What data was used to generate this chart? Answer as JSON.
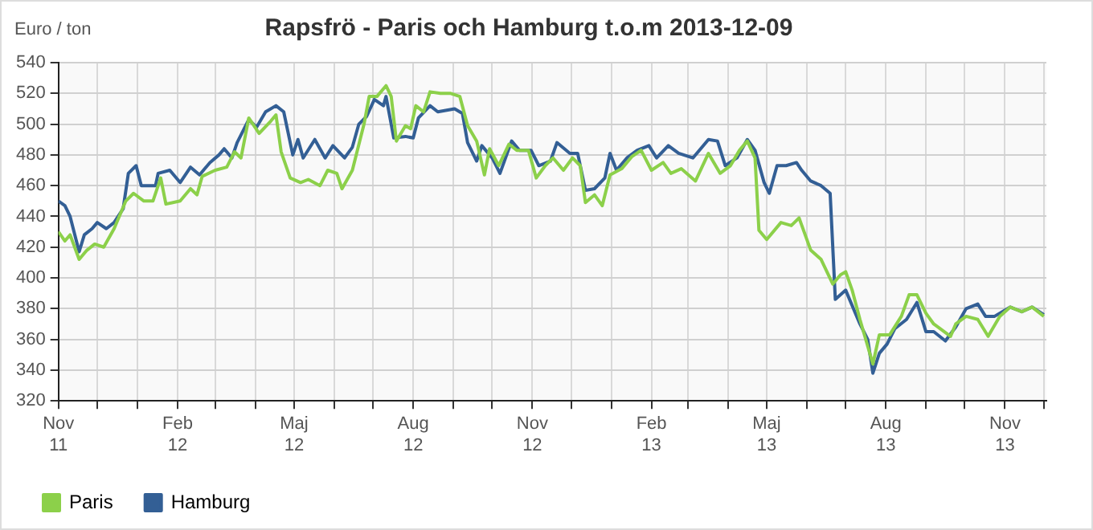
{
  "chart_data": {
    "type": "line",
    "title": "Rapsfrö - Paris och Hamburg t.o.m 2013-12-09",
    "ylabel": "Euro / ton",
    "xlim": [
      "2011-11-01",
      "2013-12-03"
    ],
    "ylim": [
      320,
      540
    ],
    "yticks": [
      320,
      340,
      360,
      380,
      400,
      420,
      440,
      460,
      480,
      500,
      520,
      540
    ],
    "xticks": [
      {
        "value": "2011-11-01",
        "label": "Nov\n11"
      },
      {
        "value": "2011-12-01",
        "label": null
      },
      {
        "value": "2012-01-01",
        "label": null
      },
      {
        "value": "2012-02-01",
        "label": "Feb\n12"
      },
      {
        "value": "2012-03-01",
        "label": null
      },
      {
        "value": "2012-04-01",
        "label": null
      },
      {
        "value": "2012-05-01",
        "label": "Maj\n12"
      },
      {
        "value": "2012-06-01",
        "label": null
      },
      {
        "value": "2012-07-01",
        "label": null
      },
      {
        "value": "2012-08-01",
        "label": "Aug\n12"
      },
      {
        "value": "2012-09-01",
        "label": null
      },
      {
        "value": "2012-10-01",
        "label": null
      },
      {
        "value": "2012-11-01",
        "label": "Nov\n12"
      },
      {
        "value": "2012-12-01",
        "label": null
      },
      {
        "value": "2013-01-01",
        "label": null
      },
      {
        "value": "2013-02-01",
        "label": "Feb\n13"
      },
      {
        "value": "2013-03-01",
        "label": null
      },
      {
        "value": "2013-04-01",
        "label": null
      },
      {
        "value": "2013-05-01",
        "label": "Maj\n13"
      },
      {
        "value": "2013-06-01",
        "label": null
      },
      {
        "value": "2013-07-01",
        "label": null
      },
      {
        "value": "2013-08-01",
        "label": "Aug\n13"
      },
      {
        "value": "2013-09-01",
        "label": null
      },
      {
        "value": "2013-10-01",
        "label": null
      },
      {
        "value": "2013-11-01",
        "label": "Nov\n13"
      },
      {
        "value": "2013-12-01",
        "label": null
      }
    ],
    "grid": true,
    "legend": "bottom left",
    "series": [
      {
        "name": "Paris",
        "color": "#8cd04a",
        "x": [
          "2011-11-01",
          "2011-11-06",
          "2011-11-10",
          "2011-11-17",
          "2011-11-23",
          "2011-11-29",
          "2011-12-06",
          "2011-12-14",
          "2011-12-23",
          "2011-12-29",
          "2012-01-06",
          "2012-01-13",
          "2012-01-19",
          "2012-01-23",
          "2012-02-03",
          "2012-02-11",
          "2012-02-16",
          "2012-02-20",
          "2012-03-01",
          "2012-03-10",
          "2012-03-16",
          "2012-03-21",
          "2012-03-27",
          "2012-04-04",
          "2012-04-13",
          "2012-04-17",
          "2012-04-21",
          "2012-04-28",
          "2012-05-06",
          "2012-05-12",
          "2012-05-21",
          "2012-05-27",
          "2012-06-03",
          "2012-06-07",
          "2012-06-15",
          "2012-06-24",
          "2012-06-28",
          "2012-07-04",
          "2012-07-11",
          "2012-07-15",
          "2012-07-19",
          "2012-07-26",
          "2012-07-30",
          "2012-08-03",
          "2012-08-09",
          "2012-08-14",
          "2012-08-22",
          "2012-08-30",
          "2012-09-06",
          "2012-09-12",
          "2012-09-19",
          "2012-09-25",
          "2012-09-29",
          "2012-10-06",
          "2012-10-14",
          "2012-10-20",
          "2012-10-29",
          "2012-11-04",
          "2012-11-11",
          "2012-11-17",
          "2012-11-25",
          "2012-12-02",
          "2012-12-08",
          "2012-12-12",
          "2012-12-19",
          "2012-12-25",
          "2012-12-31",
          "2013-01-09",
          "2013-01-17",
          "2013-01-24",
          "2013-02-01",
          "2013-02-10",
          "2013-02-16",
          "2013-02-24",
          "2013-03-07",
          "2013-03-17",
          "2013-03-26",
          "2013-04-03",
          "2013-04-10",
          "2013-04-16",
          "2013-04-22",
          "2013-04-25",
          "2013-05-01",
          "2013-05-12",
          "2013-05-20",
          "2013-05-26",
          "2013-06-04",
          "2013-06-12",
          "2013-06-21",
          "2013-06-27",
          "2013-07-01",
          "2013-07-06",
          "2013-07-12",
          "2013-07-22",
          "2013-07-27",
          "2013-08-04",
          "2013-08-13",
          "2013-08-19",
          "2013-08-25",
          "2013-09-01",
          "2013-09-07",
          "2013-09-20",
          "2013-09-24",
          "2013-10-02",
          "2013-10-11",
          "2013-10-19",
          "2013-10-28",
          "2013-11-05",
          "2013-11-14",
          "2013-11-22",
          "2013-12-01"
        ],
        "values": [
          430,
          424,
          428,
          412,
          418,
          422,
          420,
          432,
          450,
          455,
          450,
          450,
          465,
          448,
          450,
          458,
          454,
          466,
          470,
          472,
          482,
          478,
          504,
          494,
          502,
          506,
          482,
          465,
          462,
          464,
          460,
          470,
          468,
          458,
          470,
          500,
          518,
          518,
          525,
          518,
          489,
          499,
          497,
          512,
          508,
          521,
          520,
          520,
          518,
          499,
          489,
          467,
          484,
          473,
          487,
          483,
          483,
          465,
          473,
          478,
          470,
          478,
          473,
          449,
          454,
          447,
          467,
          471,
          479,
          483,
          470,
          475,
          468,
          471,
          463,
          481,
          468,
          473,
          483,
          489,
          478,
          431,
          425,
          436,
          434,
          439,
          418,
          412,
          396,
          402,
          404,
          392,
          373,
          344,
          363,
          363,
          375,
          389,
          389,
          377,
          370,
          362,
          370,
          375,
          373,
          362,
          375,
          381,
          378,
          381,
          375
        ]
      },
      {
        "name": "Hamburg",
        "color": "#335f95",
        "x": [
          "2011-11-01",
          "2011-11-06",
          "2011-11-10",
          "2011-11-17",
          "2011-11-21",
          "2011-11-27",
          "2011-12-01",
          "2011-12-08",
          "2011-12-14",
          "2011-12-21",
          "2011-12-25",
          "2011-12-31",
          "2012-01-04",
          "2012-01-15",
          "2012-01-17",
          "2012-01-26",
          "2012-02-03",
          "2012-02-11",
          "2012-02-18",
          "2012-02-26",
          "2012-03-04",
          "2012-03-08",
          "2012-03-14",
          "2012-03-18",
          "2012-03-27",
          "2012-04-02",
          "2012-04-09",
          "2012-04-17",
          "2012-04-23",
          "2012-04-30",
          "2012-05-04",
          "2012-05-08",
          "2012-05-17",
          "2012-05-25",
          "2012-05-31",
          "2012-06-09",
          "2012-06-15",
          "2012-06-20",
          "2012-06-26",
          "2012-07-02",
          "2012-07-09",
          "2012-07-11",
          "2012-07-17",
          "2012-07-26",
          "2012-08-01",
          "2012-08-05",
          "2012-08-14",
          "2012-08-20",
          "2012-09-02",
          "2012-09-08",
          "2012-09-12",
          "2012-09-19",
          "2012-09-23",
          "2012-10-01",
          "2012-10-07",
          "2012-10-16",
          "2012-10-22",
          "2012-10-31",
          "2012-11-06",
          "2012-11-15",
          "2012-11-20",
          "2012-11-30",
          "2012-12-06",
          "2012-12-12",
          "2012-12-19",
          "2012-12-27",
          "2012-12-31",
          "2013-01-05",
          "2013-01-13",
          "2013-01-21",
          "2013-01-30",
          "2013-02-05",
          "2013-02-14",
          "2013-02-22",
          "2013-03-05",
          "2013-03-17",
          "2013-03-24",
          "2013-03-30",
          "2013-04-08",
          "2013-04-16",
          "2013-04-22",
          "2013-04-29",
          "2013-05-03",
          "2013-05-09",
          "2013-05-16",
          "2013-05-24",
          "2013-05-28",
          "2013-06-04",
          "2013-06-12",
          "2013-06-19",
          "2013-06-23",
          "2013-07-01",
          "2013-07-12",
          "2013-07-18",
          "2013-07-22",
          "2013-07-27",
          "2013-08-02",
          "2013-08-08",
          "2013-08-17",
          "2013-08-25",
          "2013-09-01",
          "2013-09-07",
          "2013-09-16",
          "2013-09-24",
          "2013-10-02",
          "2013-10-11",
          "2013-10-17",
          "2013-10-24",
          "2013-11-05",
          "2013-11-14",
          "2013-11-22",
          "2013-12-01"
        ],
        "values": [
          450,
          447,
          440,
          417,
          428,
          432,
          436,
          432,
          436,
          445,
          468,
          473,
          460,
          460,
          468,
          470,
          462,
          472,
          467,
          475,
          480,
          484,
          478,
          488,
          503,
          498,
          508,
          512,
          508,
          480,
          490,
          478,
          490,
          478,
          486,
          478,
          485,
          500,
          505,
          516,
          512,
          518,
          491,
          492,
          491,
          504,
          512,
          508,
          510,
          507,
          488,
          476,
          486,
          478,
          468,
          489,
          483,
          483,
          473,
          476,
          488,
          481,
          481,
          457,
          458,
          465,
          481,
          470,
          478,
          483,
          486,
          478,
          486,
          481,
          478,
          490,
          489,
          473,
          478,
          490,
          483,
          462,
          455,
          473,
          473,
          475,
          470,
          463,
          460,
          455,
          386,
          392,
          370,
          360,
          338,
          351,
          357,
          367,
          373,
          384,
          365,
          365,
          359,
          368,
          380,
          383,
          375,
          375,
          381,
          378,
          381,
          376
        ]
      }
    ]
  }
}
